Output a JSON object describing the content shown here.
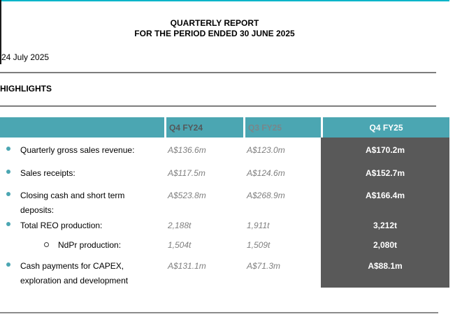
{
  "header": {
    "title_line1": "QUARTERLY REPORT",
    "title_line2": "FOR THE PERIOD ENDED 30 JUNE 2025",
    "date": "24 July 2025",
    "section_heading": "HIGHLIGHTS"
  },
  "table": {
    "columns": [
      "Q4 FY24",
      "Q3 FY25",
      "Q4 FY25"
    ],
    "rows": [
      {
        "label": "Quarterly gross sales revenue:",
        "q4_fy24": "A$136.6m",
        "q3_fy25": "A$123.0m",
        "q4_fy25": "A$170.2m"
      },
      {
        "label": "Sales receipts:",
        "q4_fy24": "A$117.5m",
        "q3_fy25": "A$124.6m",
        "q4_fy25": "A$152.7m"
      },
      {
        "label": "Closing cash and short term deposits:",
        "q4_fy24": "A$523.8m",
        "q3_fy25": "A$268.9m",
        "q4_fy25": "A$166.4m"
      },
      {
        "label": "Total REO production:",
        "q4_fy24": "2,188t",
        "q3_fy25": "1,911t",
        "q4_fy25": "3,212t"
      },
      {
        "label": "NdPr production:",
        "q4_fy24": "1,504t",
        "q3_fy25": "1,509t",
        "q4_fy25": "2,080t"
      },
      {
        "label": "Cash payments for CAPEX, exploration and development",
        "q4_fy24": "A$131.1m",
        "q3_fy25": "A$71.3m",
        "q4_fy25": "A$88.1m"
      }
    ]
  },
  "colors": {
    "accent_cyan": "#00b5c9",
    "table_header_teal": "#4ba6b2",
    "highlight_column_gray": "#595959",
    "muted_value_gray": "#7f7f7f"
  }
}
